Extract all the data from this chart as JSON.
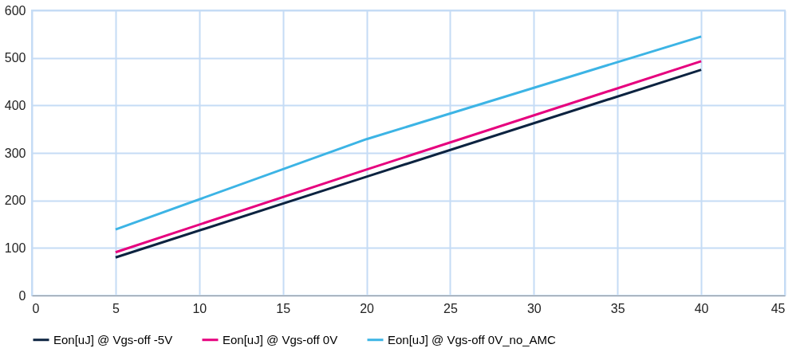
{
  "chart_data": {
    "type": "line",
    "x": [
      5,
      20,
      40
    ],
    "series": [
      {
        "name": "Eon[uJ] @ Vgs-off -5V",
        "color": "#0c2340",
        "values": [
          80,
          250,
          475
        ]
      },
      {
        "name": "Eon[uJ] @ Vgs-off 0V",
        "color": "#e6007e",
        "values": [
          91,
          265,
          493
        ]
      },
      {
        "name": "Eon[uJ] @ Vgs-off 0V_no_AMC",
        "color": "#3cb4e5",
        "values": [
          139,
          329,
          545
        ]
      }
    ],
    "xlim": [
      0,
      45
    ],
    "xticks": [
      0,
      5,
      10,
      15,
      20,
      25,
      30,
      35,
      40,
      45
    ],
    "ylim": [
      0,
      600
    ],
    "yticks": [
      0,
      100,
      200,
      300,
      400,
      500,
      600
    ],
    "grid": true,
    "legend": "bottom",
    "marker": "none",
    "line_style": "solid"
  }
}
